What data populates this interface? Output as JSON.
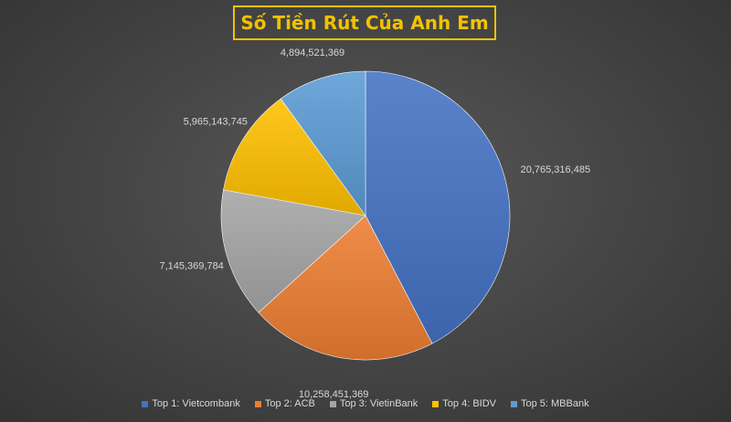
{
  "chart_data": {
    "type": "pie",
    "title": "Số Tiền Rút Của Anh Em",
    "categories": [
      "Top 1: Vietcombank",
      "Top 2: ACB",
      "Top 3: VietinBank",
      "Top 4: BIDV",
      "Top 5: MBBank"
    ],
    "values": [
      20765316485,
      10258451369,
      7145369784,
      5965143745,
      4894521369
    ],
    "data_labels": [
      "20,765,316,485",
      "10,258,451,369",
      "7,145,369,784",
      "5,965,143,745",
      "4,894,521,369"
    ],
    "colors": [
      "#4472C4",
      "#ED7D31",
      "#A5A5A5",
      "#FFC000",
      "#5B9BD5"
    ],
    "legend_position": "bottom"
  }
}
